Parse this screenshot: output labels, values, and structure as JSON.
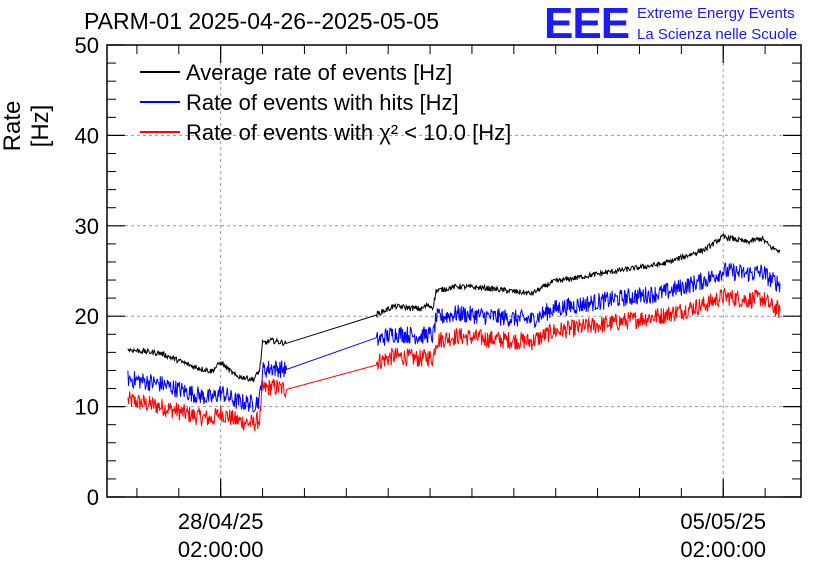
{
  "header": {
    "title": "PARM-01 2025-04-26--2025-05-05",
    "logo_letters": "EEE",
    "logo_line1": "Extreme Energy Events",
    "logo_line2": "La Scienza nelle Scuole"
  },
  "colors": {
    "black": "#000000",
    "blue": "#0000ff",
    "red": "#ff0000",
    "logo": "#1a1aff"
  },
  "chart_data": {
    "type": "line",
    "ylabel": "Rate [Hz]",
    "ylim": [
      0,
      50
    ],
    "yticks": [
      "0",
      "10",
      "20",
      "30",
      "40",
      "50"
    ],
    "xlim": [
      "2025-04-26T12:00",
      "2025-05-06T04:00"
    ],
    "xticks": [
      {
        "date": "28/04/25",
        "time": "02:00:00",
        "x": "2025-04-28T02:00"
      },
      {
        "date": "05/05/25",
        "time": "02:00:00",
        "x": "2025-05-05T02:00"
      }
    ],
    "grid": true,
    "legend_position": "top-left",
    "series": [
      {
        "name": "Average rate of events [Hz]",
        "color": "#000000",
        "noise": 0.3,
        "points": [
          [
            "2025-04-26T19:00",
            16.3
          ],
          [
            "2025-04-27T06:00",
            15.9
          ],
          [
            "2025-04-27T17:00",
            14.4
          ],
          [
            "2025-04-27T23:00",
            13.9
          ],
          [
            "2025-04-28T02:00",
            14.9
          ],
          [
            "2025-04-28T07:00",
            13.4
          ],
          [
            "2025-04-28T13:00",
            13.0
          ],
          [
            "2025-04-28T15:00",
            14.0
          ],
          [
            "2025-04-28T16:00",
            17.0
          ],
          [
            "2025-04-28T19:00",
            17.3
          ],
          [
            "2025-04-29T00:00",
            17.0
          ],
          [
            "2025-04-30T06:00",
            20.2
          ],
          [
            "2025-04-30T12:00",
            21.1
          ],
          [
            "2025-04-30T21:00",
            20.8
          ],
          [
            "2025-04-30T23:00",
            21.2
          ],
          [
            "2025-05-01T01:00",
            21.0
          ],
          [
            "2025-05-01T02:00",
            22.8
          ],
          [
            "2025-05-01T09:00",
            23.3
          ],
          [
            "2025-05-01T19:00",
            23.1
          ],
          [
            "2025-05-02T10:00",
            22.5
          ],
          [
            "2025-05-02T17:00",
            23.8
          ],
          [
            "2025-05-03T12:00",
            24.9
          ],
          [
            "2025-05-04T06:00",
            25.8
          ],
          [
            "2025-05-04T20:00",
            27.4
          ],
          [
            "2025-05-05T02:00",
            28.8
          ],
          [
            "2025-05-05T10:00",
            28.2
          ],
          [
            "2025-05-05T15:00",
            28.6
          ],
          [
            "2025-05-05T18:00",
            27.6
          ],
          [
            "2025-05-05T21:00",
            27.2
          ]
        ]
      },
      {
        "name": "Rate of events with hits [Hz]",
        "color": "#0000ff",
        "noise": 1.0,
        "points": [
          [
            "2025-04-26T19:00",
            13.1
          ],
          [
            "2025-04-27T06:00",
            12.5
          ],
          [
            "2025-04-27T17:00",
            11.4
          ],
          [
            "2025-04-27T23:00",
            10.9
          ],
          [
            "2025-04-28T02:00",
            11.6
          ],
          [
            "2025-04-28T07:00",
            10.6
          ],
          [
            "2025-04-28T13:00",
            10.3
          ],
          [
            "2025-04-28T15:00",
            10.8
          ],
          [
            "2025-04-28T16:00",
            14.0
          ],
          [
            "2025-04-28T19:00",
            14.3
          ],
          [
            "2025-04-29T00:00",
            14.1
          ],
          [
            "2025-04-30T06:00",
            17.3
          ],
          [
            "2025-04-30T12:00",
            18.1
          ],
          [
            "2025-04-30T21:00",
            17.8
          ],
          [
            "2025-04-30T23:00",
            18.0
          ],
          [
            "2025-05-01T01:00",
            17.8
          ],
          [
            "2025-05-01T02:00",
            19.8
          ],
          [
            "2025-05-01T09:00",
            20.3
          ],
          [
            "2025-05-01T19:00",
            20.0
          ],
          [
            "2025-05-02T10:00",
            19.6
          ],
          [
            "2025-05-02T17:00",
            20.8
          ],
          [
            "2025-05-03T12:00",
            21.8
          ],
          [
            "2025-05-04T06:00",
            22.6
          ],
          [
            "2025-05-04T20:00",
            24.0
          ],
          [
            "2025-05-05T02:00",
            25.0
          ],
          [
            "2025-05-05T10:00",
            24.7
          ],
          [
            "2025-05-05T15:00",
            24.9
          ],
          [
            "2025-05-05T18:00",
            24.0
          ],
          [
            "2025-05-05T21:00",
            23.6
          ]
        ]
      },
      {
        "name": "Rate of events with χ² < 10.0 [Hz]",
        "color": "#ff0000",
        "noise": 1.0,
        "points": [
          [
            "2025-04-26T19:00",
            10.7
          ],
          [
            "2025-04-27T06:00",
            10.0
          ],
          [
            "2025-04-27T17:00",
            9.0
          ],
          [
            "2025-04-27T23:00",
            8.6
          ],
          [
            "2025-04-28T02:00",
            9.3
          ],
          [
            "2025-04-28T07:00",
            8.5
          ],
          [
            "2025-04-28T13:00",
            8.1
          ],
          [
            "2025-04-28T15:00",
            8.6
          ],
          [
            "2025-04-28T16:00",
            11.9
          ],
          [
            "2025-04-28T19:00",
            12.2
          ],
          [
            "2025-04-29T00:00",
            11.9
          ],
          [
            "2025-04-30T06:00",
            14.9
          ],
          [
            "2025-04-30T12:00",
            15.6
          ],
          [
            "2025-04-30T21:00",
            15.3
          ],
          [
            "2025-04-30T23:00",
            15.5
          ],
          [
            "2025-05-01T01:00",
            15.3
          ],
          [
            "2025-05-01T02:00",
            17.3
          ],
          [
            "2025-05-01T09:00",
            17.8
          ],
          [
            "2025-05-01T19:00",
            17.5
          ],
          [
            "2025-05-02T10:00",
            17.2
          ],
          [
            "2025-05-02T17:00",
            18.3
          ],
          [
            "2025-05-03T12:00",
            19.2
          ],
          [
            "2025-05-04T06:00",
            20.1
          ],
          [
            "2025-05-04T20:00",
            21.3
          ],
          [
            "2025-05-05T02:00",
            22.2
          ],
          [
            "2025-05-05T10:00",
            21.8
          ],
          [
            "2025-05-05T15:00",
            22.0
          ],
          [
            "2025-05-05T18:00",
            21.1
          ],
          [
            "2025-05-05T21:00",
            20.6
          ]
        ]
      }
    ]
  }
}
